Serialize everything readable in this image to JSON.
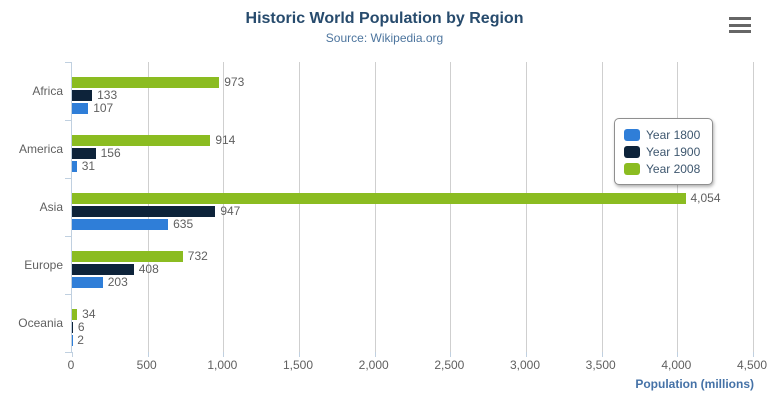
{
  "chart_data": {
    "type": "bar",
    "orientation": "horizontal",
    "title": "Historic World Population by Region",
    "subtitle": "Source: Wikipedia.org",
    "categories": [
      "Africa",
      "America",
      "Asia",
      "Europe",
      "Oceania"
    ],
    "series": [
      {
        "name": "Year 1800",
        "color": "#2f7ed8",
        "values": [
          107,
          31,
          635,
          203,
          2
        ]
      },
      {
        "name": "Year 1900",
        "color": "#0d233a",
        "values": [
          133,
          156,
          947,
          408,
          6
        ]
      },
      {
        "name": "Year 2008",
        "color": "#8bbc21",
        "values": [
          973,
          914,
          4054,
          732,
          34
        ]
      }
    ],
    "bar_order_top_to_bottom": [
      "Year 2008",
      "Year 1900",
      "Year 1800"
    ],
    "xlabel": "Population (millions)",
    "x_ticks": [
      0,
      500,
      1000,
      1500,
      2000,
      2500,
      3000,
      3500,
      4000,
      4500
    ],
    "xlim": [
      0,
      4500
    ],
    "grid": true,
    "data_labels": true,
    "legend_position": "right-middle-floating",
    "legend_items": [
      "Year 1800",
      "Year 1900",
      "Year 2008"
    ]
  },
  "theme": {
    "title_color": "#274b6d",
    "subtitle_color": "#4d759e",
    "label_color": "#606060",
    "axis_line_color": "#C0D0E0",
    "grid_color": "#cfcfcf",
    "axis_title_color": "#4572A7",
    "legend_text_color": "#3E576F",
    "series_colors": [
      "#2f7ed8",
      "#0d233a",
      "#8bbc21"
    ]
  },
  "toolbar": {
    "menu_icon": "hamburger-menu-icon"
  }
}
